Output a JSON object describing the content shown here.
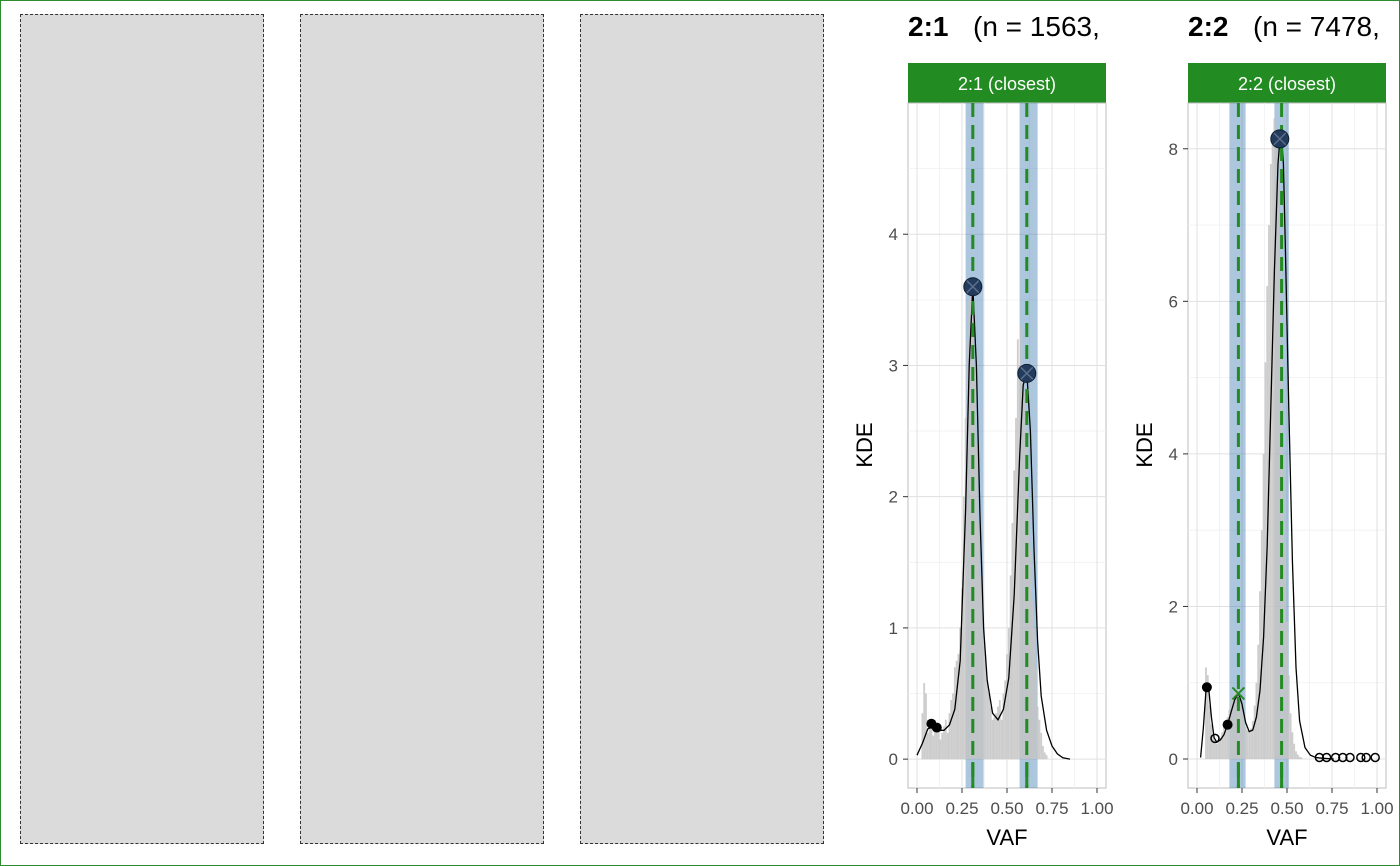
{
  "colors": {
    "strip": "#228b22",
    "dashed_line": "#228b22",
    "band": "steelblue",
    "peak_marker": "#233b5c",
    "histogram": "#c4c4c4",
    "density_line": "#000000",
    "empty_panel": "#dbdbdb"
  },
  "empty_panels": 3,
  "chart_data": [
    {
      "type": "area",
      "title_bold": "2:1",
      "title_rest": "(n = 1563,",
      "strip_label": "2:1 (closest)",
      "xlabel": "VAF",
      "ylabel": "KDE",
      "xlim": [
        -0.05,
        1.05
      ],
      "ylim": [
        -0.22,
        5.0
      ],
      "xticks": [
        "0.00",
        "0.25",
        "0.50",
        "0.75",
        "1.00"
      ],
      "xtick_values": [
        0,
        0.25,
        0.5,
        0.75,
        1.0
      ],
      "yticks": [
        "0",
        "1",
        "2",
        "3",
        "4"
      ],
      "ytick_values": [
        0,
        1,
        2,
        3,
        4
      ],
      "grid": true,
      "expected_peaks": [
        0.31,
        0.61
      ],
      "bands": [
        [
          0.27,
          0.37
        ],
        [
          0.57,
          0.67
        ]
      ],
      "density": {
        "x": [
          0.0,
          0.03,
          0.06,
          0.09,
          0.12,
          0.15,
          0.18,
          0.21,
          0.24,
          0.27,
          0.29,
          0.31,
          0.33,
          0.35,
          0.37,
          0.39,
          0.42,
          0.45,
          0.48,
          0.51,
          0.54,
          0.57,
          0.59,
          0.61,
          0.63,
          0.65,
          0.67,
          0.69,
          0.72,
          0.75,
          0.78,
          0.81,
          0.85
        ],
        "y": [
          0.03,
          0.12,
          0.23,
          0.25,
          0.22,
          0.22,
          0.26,
          0.38,
          0.75,
          1.9,
          3.0,
          3.6,
          3.0,
          1.85,
          1.0,
          0.6,
          0.35,
          0.3,
          0.38,
          0.62,
          1.25,
          2.3,
          2.85,
          2.95,
          2.5,
          1.6,
          0.9,
          0.48,
          0.22,
          0.1,
          0.04,
          0.01,
          0.0
        ]
      },
      "histogram": {
        "x": [
          0.03,
          0.04,
          0.05,
          0.06,
          0.07,
          0.08,
          0.09,
          0.1,
          0.11,
          0.12,
          0.13,
          0.14,
          0.15,
          0.16,
          0.17,
          0.18,
          0.19,
          0.2,
          0.21,
          0.22,
          0.23,
          0.24,
          0.25,
          0.26,
          0.27,
          0.28,
          0.29,
          0.3,
          0.31,
          0.32,
          0.33,
          0.34,
          0.35,
          0.36,
          0.37,
          0.38,
          0.39,
          0.4,
          0.41,
          0.42,
          0.43,
          0.44,
          0.45,
          0.46,
          0.47,
          0.48,
          0.49,
          0.5,
          0.51,
          0.52,
          0.53,
          0.54,
          0.55,
          0.56,
          0.57,
          0.58,
          0.59,
          0.6,
          0.61,
          0.62,
          0.63,
          0.64,
          0.65,
          0.66,
          0.67,
          0.68,
          0.69,
          0.7,
          0.71,
          0.72
        ],
        "y": [
          0.35,
          0.58,
          0.5,
          0.2,
          0.3,
          0.25,
          0.18,
          0.28,
          0.2,
          0.22,
          0.15,
          0.2,
          0.25,
          0.3,
          0.2,
          0.35,
          0.45,
          0.5,
          0.7,
          0.75,
          0.8,
          1.0,
          1.3,
          2.0,
          2.6,
          3.2,
          3.5,
          3.6,
          3.4,
          3.0,
          2.4,
          1.8,
          1.4,
          1.1,
          0.9,
          0.8,
          0.6,
          0.5,
          0.4,
          0.3,
          0.32,
          0.35,
          0.4,
          0.45,
          0.3,
          0.5,
          0.6,
          0.8,
          1.0,
          1.4,
          1.8,
          2.2,
          2.6,
          3.2,
          3.0,
          3.3,
          3.0,
          2.8,
          2.5,
          2.0,
          1.6,
          1.2,
          1.0,
          0.7,
          0.4,
          0.3,
          0.2,
          0.1,
          0.05,
          0.03
        ]
      },
      "peaks": [
        {
          "x": 0.31,
          "y": 3.6
        },
        {
          "x": 0.61,
          "y": 2.94
        }
      ],
      "filled_points": [
        {
          "x": 0.08,
          "y": 0.27
        },
        {
          "x": 0.11,
          "y": 0.24
        }
      ],
      "open_points": [],
      "x_markers": []
    },
    {
      "type": "area",
      "title_bold": "2:2",
      "title_rest": "(n = 7478,",
      "strip_label": "2:2 (closest)",
      "xlabel": "VAF",
      "ylabel": "KDE",
      "xlim": [
        -0.05,
        1.05
      ],
      "ylim": [
        -0.38,
        8.6
      ],
      "xticks": [
        "0.00",
        "0.25",
        "0.50",
        "0.75",
        "1.00"
      ],
      "xtick_values": [
        0,
        0.25,
        0.5,
        0.75,
        1.0
      ],
      "yticks": [
        "0",
        "2",
        "4",
        "6",
        "8"
      ],
      "ytick_values": [
        0,
        2,
        4,
        6,
        8
      ],
      "grid": true,
      "expected_peaks": [
        0.23,
        0.47
      ],
      "bands": [
        [
          0.18,
          0.27
        ],
        [
          0.43,
          0.51
        ]
      ],
      "density": {
        "x": [
          0.02,
          0.035,
          0.05,
          0.065,
          0.08,
          0.095,
          0.11,
          0.13,
          0.15,
          0.17,
          0.19,
          0.21,
          0.23,
          0.25,
          0.27,
          0.29,
          0.31,
          0.33,
          0.35,
          0.37,
          0.39,
          0.41,
          0.43,
          0.45,
          0.46,
          0.47,
          0.48,
          0.49,
          0.51,
          0.53,
          0.55,
          0.57,
          0.6,
          0.63,
          0.66,
          0.7,
          0.76
        ],
        "y": [
          0.02,
          0.4,
          0.9,
          0.93,
          0.55,
          0.28,
          0.22,
          0.25,
          0.32,
          0.45,
          0.62,
          0.78,
          0.86,
          0.72,
          0.48,
          0.36,
          0.38,
          0.55,
          0.9,
          1.6,
          2.8,
          4.6,
          6.4,
          7.8,
          8.1,
          8.15,
          7.8,
          6.8,
          4.6,
          2.6,
          1.2,
          0.5,
          0.15,
          0.05,
          0.02,
          0.01,
          0.0
        ]
      },
      "histogram": {
        "x": [
          0.05,
          0.06,
          0.07,
          0.08,
          0.09,
          0.1,
          0.11,
          0.12,
          0.13,
          0.14,
          0.15,
          0.16,
          0.17,
          0.18,
          0.19,
          0.2,
          0.21,
          0.22,
          0.23,
          0.24,
          0.25,
          0.26,
          0.27,
          0.28,
          0.29,
          0.3,
          0.31,
          0.32,
          0.33,
          0.34,
          0.35,
          0.36,
          0.37,
          0.38,
          0.39,
          0.4,
          0.41,
          0.42,
          0.43,
          0.44,
          0.45,
          0.46,
          0.47,
          0.48,
          0.49,
          0.5,
          0.51,
          0.52,
          0.53,
          0.54,
          0.55,
          0.56,
          0.57,
          0.58
        ],
        "y": [
          1.2,
          1.1,
          0.7,
          0.45,
          0.3,
          0.25,
          0.2,
          0.22,
          0.28,
          0.35,
          0.42,
          0.5,
          0.55,
          0.65,
          0.75,
          0.82,
          0.88,
          0.92,
          0.9,
          0.8,
          0.65,
          0.5,
          0.42,
          0.38,
          0.35,
          0.4,
          0.5,
          0.7,
          1.0,
          1.5,
          2.2,
          3.0,
          4.0,
          5.2,
          6.2,
          7.0,
          7.8,
          8.1,
          8.4,
          8.2,
          7.6,
          6.6,
          5.4,
          4.0,
          2.8,
          1.8,
          1.1,
          0.6,
          0.35,
          0.2,
          0.1,
          0.06,
          0.03,
          0.02
        ]
      },
      "peaks": [
        {
          "x": 0.46,
          "y": 8.13
        }
      ],
      "filled_points": [
        {
          "x": 0.055,
          "y": 0.94
        },
        {
          "x": 0.17,
          "y": 0.45
        }
      ],
      "open_points": [
        {
          "x": 0.1,
          "y": 0.27
        },
        {
          "x": 0.68,
          "y": 0.02
        },
        {
          "x": 0.72,
          "y": 0.02
        },
        {
          "x": 0.77,
          "y": 0.02
        },
        {
          "x": 0.81,
          "y": 0.02
        },
        {
          "x": 0.85,
          "y": 0.02
        },
        {
          "x": 0.91,
          "y": 0.02
        },
        {
          "x": 0.94,
          "y": 0.02
        },
        {
          "x": 0.99,
          "y": 0.02
        }
      ],
      "x_markers": [
        {
          "x": 0.23,
          "y": 0.86
        }
      ]
    }
  ]
}
